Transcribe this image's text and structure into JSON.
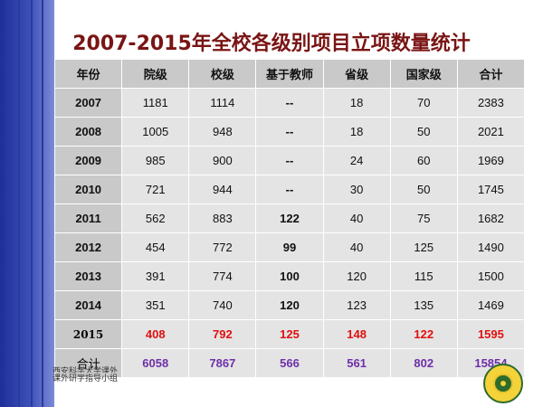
{
  "title": "2007-2015年全校各级别项目立项数量统计",
  "table": {
    "headers": [
      "年份",
      "院级",
      "校级",
      "基于教师",
      "省级",
      "国家级",
      "合计"
    ],
    "rows": [
      [
        "2007",
        "1181",
        "1114",
        "--",
        "18",
        "70",
        "2383"
      ],
      [
        "2008",
        "1005",
        "948",
        "--",
        "18",
        "50",
        "2021"
      ],
      [
        "2009",
        "985",
        "900",
        "--",
        "24",
        "60",
        "1969"
      ],
      [
        "2010",
        "721",
        "944",
        "--",
        "30",
        "50",
        "1745"
      ],
      [
        "2011",
        "562",
        "883",
        "122",
        "40",
        "75",
        "1682"
      ],
      [
        "2012",
        "454",
        "772",
        "99",
        "40",
        "125",
        "1490"
      ],
      [
        "2013",
        "391",
        "774",
        "100",
        "120",
        "115",
        "1500"
      ],
      [
        "2014",
        "351",
        "740",
        "120",
        "123",
        "135",
        "1469"
      ],
      [
        "2015",
        "408",
        "792",
        "125",
        "148",
        "122",
        "1595"
      ],
      [
        "合计",
        "6058",
        "7867",
        "566",
        "561",
        "802",
        "15854"
      ]
    ]
  },
  "footer": {
    "line1": "西安科学大学课外",
    "line2": "课外研学指导小组"
  },
  "colors": {
    "title": "#7a1414",
    "highlight_row": "#e01010",
    "total_row": "#6e2fa8",
    "sidebar": "#2a3a9e"
  },
  "logo_icon": "university-emblem-icon"
}
